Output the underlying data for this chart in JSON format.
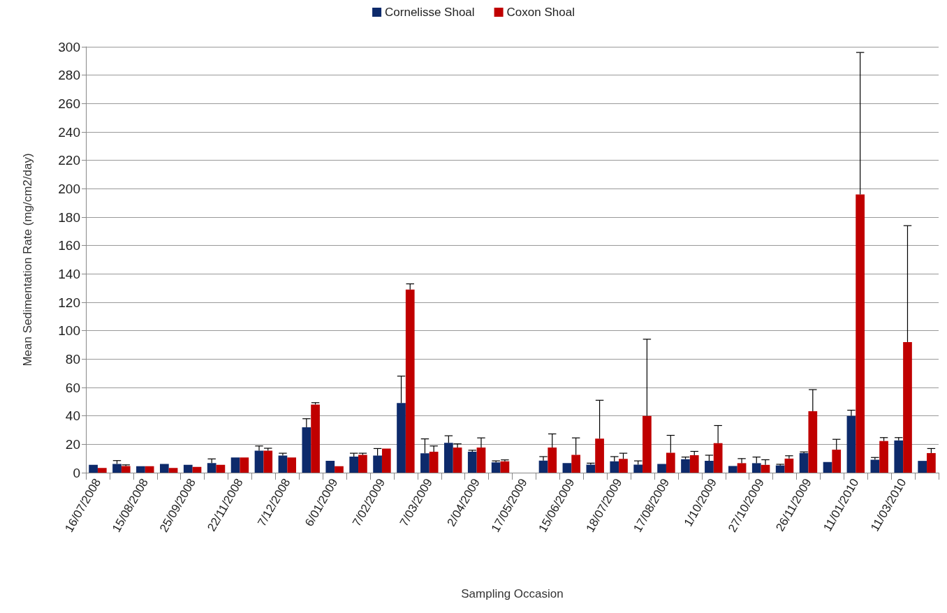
{
  "chart_data": {
    "type": "bar",
    "xlabel": "Sampling Occasion",
    "ylabel": "Mean Sedimentation Rate (mg/cm2/day)",
    "categories": [
      "16/07/2008",
      null,
      "15/08/2008",
      null,
      "25/09/2008",
      null,
      "22/11/2008",
      null,
      "7/12/2008",
      null,
      "6/01/2009",
      null,
      "7/02/2009",
      null,
      "7/03/2009",
      null,
      "2/04/2009",
      null,
      "17/05/2009",
      null,
      "15/06/2009",
      null,
      "18/07/2009",
      null,
      "17/08/2009",
      null,
      "1/10/2009",
      null,
      "27/10/2009",
      null,
      "26/11/2009",
      null,
      "11/01/2010",
      null,
      "11/03/2010",
      null
    ],
    "series": [
      {
        "name": "Cornelisse Shoal",
        "color": "#0d2a6b",
        "values": [
          5.5,
          6.2,
          4.5,
          6.2,
          5.5,
          6.8,
          10.7,
          15.5,
          12,
          32,
          8.3,
          11.3,
          12,
          49,
          13.7,
          21,
          14.8,
          7.3,
          null,
          8.5,
          6.8,
          5.7,
          8,
          5.7,
          6.1,
          9.5,
          8.3,
          4.7,
          6.7,
          5.1,
          13.8,
          7.5,
          40,
          9.1,
          22.7,
          8.3
        ],
        "errors": [
          null,
          [
            6.2,
            8.5
          ],
          null,
          null,
          null,
          [
            6.8,
            9.7
          ],
          null,
          [
            15.5,
            18.8
          ],
          [
            12,
            13.7
          ],
          [
            32,
            38
          ],
          null,
          [
            11.3,
            13.7
          ],
          [
            12,
            17
          ],
          [
            49,
            68
          ],
          [
            13.7,
            23.8
          ],
          [
            21,
            26
          ],
          [
            14.8,
            15.8
          ],
          [
            7.3,
            8.3
          ],
          null,
          [
            8.5,
            11.3
          ],
          null,
          [
            5.7,
            6.7
          ],
          [
            8,
            11.3
          ],
          [
            5.7,
            8.3
          ],
          null,
          [
            9.5,
            11
          ],
          [
            8.3,
            12.3
          ],
          null,
          [
            6.7,
            11
          ],
          [
            5.1,
            5.9
          ],
          [
            13.8,
            14.6
          ],
          null,
          [
            40,
            44
          ],
          [
            9.1,
            10.7
          ],
          [
            22.7,
            24.7
          ],
          null
        ]
      },
      {
        "name": "Coxon Shoal",
        "color": "#c00000",
        "values": [
          3.3,
          4.7,
          4.5,
          3.3,
          4,
          5.5,
          10.7,
          15.5,
          10.7,
          48,
          4.5,
          12.5,
          17,
          129,
          14.8,
          17.7,
          17.7,
          8,
          null,
          17.7,
          12.5,
          24,
          9.7,
          40,
          14,
          12.3,
          20.8,
          6.7,
          5.5,
          9.9,
          43.3,
          16.2,
          196,
          22.3,
          92,
          13.8
        ],
        "errors": [
          null,
          [
            4.7,
            5.5
          ],
          null,
          null,
          null,
          null,
          null,
          [
            15.5,
            17.2
          ],
          null,
          [
            48,
            49.3
          ],
          null,
          [
            12.5,
            13.7
          ],
          null,
          [
            129,
            133
          ],
          [
            14.8,
            18.8
          ],
          [
            17.7,
            20.3
          ],
          [
            17.7,
            24.5
          ],
          [
            8,
            9
          ],
          null,
          [
            17.7,
            27.3
          ],
          [
            12.5,
            24.5
          ],
          [
            24,
            51
          ],
          [
            9.7,
            13.7
          ],
          [
            40,
            94
          ],
          [
            14,
            26.3
          ],
          [
            12.3,
            15
          ],
          [
            20.8,
            33.2
          ],
          [
            6.7,
            9.9
          ],
          [
            5.5,
            9.1
          ],
          [
            9.9,
            11.9
          ],
          [
            43.3,
            58.5
          ],
          [
            16.2,
            23.5
          ],
          [
            196,
            296
          ],
          [
            22.3,
            24.7
          ],
          [
            92,
            174
          ],
          [
            13.8,
            17
          ]
        ]
      }
    ],
    "ylim": [
      0,
      300
    ],
    "yticks": [
      0,
      20,
      40,
      60,
      80,
      100,
      120,
      140,
      160,
      180,
      200,
      220,
      240,
      260,
      280,
      300
    ],
    "grid": "y",
    "legend": "top"
  }
}
